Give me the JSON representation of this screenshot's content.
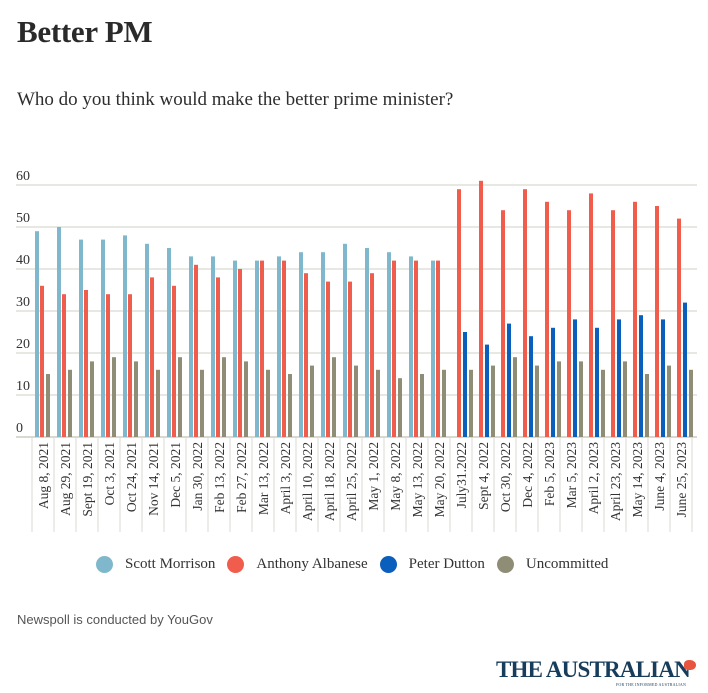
{
  "header": {
    "title": "Better PM",
    "subtitle": "Who do you think would make the better prime minister?"
  },
  "footer": {
    "source": "Newspoll is conducted by YouGov",
    "brand": "THE AUSTRALIAN",
    "brand_tagline": "FOR THE INFORMED AUSTRALIAN",
    "brand_icon": "australia-map-icon"
  },
  "chart_data": {
    "type": "bar",
    "title": "Better PM",
    "subtitle": "Who do you think would make the better prime minister?",
    "xlabel": "",
    "ylabel": "",
    "ylim": [
      0,
      60
    ],
    "yticks": [
      0,
      10,
      20,
      30,
      40,
      50,
      60
    ],
    "grid": true,
    "legend_position": "bottom",
    "categories": [
      "Aug 8, 2021",
      "Aug 29, 2021",
      "Sept 19, 2021",
      "Oct 3, 2021",
      "Oct 24, 2021",
      "Nov 14, 2021",
      "Dec 5, 2021",
      "Jan 30, 2022",
      "Feb 13, 2022",
      "Feb 27, 2022",
      "Mar 13, 2022",
      "April 3, 2022",
      "April 10, 2022",
      "April 18, 2022",
      "April 25, 2022",
      "May 1, 2022",
      "May 8, 2022",
      "May 13, 2022",
      "May 20, 2022",
      "July31.2022",
      "Sept 4, 2022",
      "Oct 30, 2022",
      "Dec 4, 2022",
      "Feb 5, 2023",
      "Mar 5, 2023",
      "April 2, 2023",
      "April 23, 2023",
      "May 14, 2023",
      "June 4, 2023",
      "June 25, 2023"
    ],
    "series": [
      {
        "name": "Scott Morrison",
        "color": "#7fb8cc",
        "values": [
          49,
          50,
          47,
          47,
          48,
          46,
          45,
          43,
          43,
          42,
          42,
          43,
          44,
          44,
          46,
          45,
          44,
          43,
          42,
          null,
          null,
          null,
          null,
          null,
          null,
          null,
          null,
          null,
          null,
          null
        ]
      },
      {
        "name": "Anthony Albanese",
        "color": "#f05d4d",
        "values": [
          36,
          34,
          35,
          34,
          34,
          38,
          36,
          41,
          38,
          40,
          42,
          42,
          39,
          37,
          37,
          39,
          42,
          42,
          42,
          59,
          61,
          54,
          59,
          56,
          54,
          58,
          54,
          56,
          55,
          52
        ]
      },
      {
        "name": "Peter Dutton",
        "color": "#0a5ebc",
        "values": [
          null,
          null,
          null,
          null,
          null,
          null,
          null,
          null,
          null,
          null,
          null,
          null,
          null,
          null,
          null,
          null,
          null,
          null,
          null,
          25,
          22,
          27,
          24,
          26,
          28,
          26,
          28,
          29,
          28,
          32
        ]
      },
      {
        "name": "Uncommitted",
        "color": "#908d76",
        "values": [
          15,
          16,
          18,
          19,
          18,
          16,
          19,
          16,
          19,
          18,
          16,
          15,
          17,
          19,
          17,
          16,
          14,
          15,
          16,
          16,
          17,
          19,
          17,
          18,
          18,
          16,
          18,
          15,
          17,
          16
        ]
      }
    ]
  }
}
